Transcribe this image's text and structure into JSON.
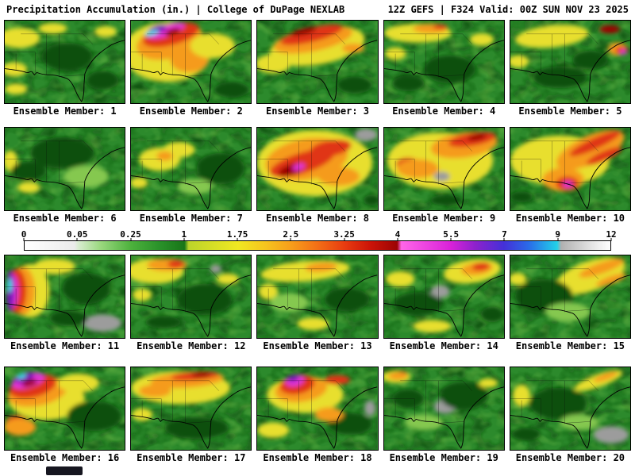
{
  "header": {
    "left": "Precipitation Accumulation (in.) | College of DuPage NEXLAB",
    "right": "12Z GEFS | F324 Valid: 00Z SUN NOV 23 2025"
  },
  "colorbar": {
    "ticks": [
      "0",
      "0.05",
      "0.25",
      "1",
      "1.75",
      "2.5",
      "3.25",
      "4",
      "5.5",
      "7",
      "9",
      "12"
    ],
    "gradient": [
      {
        "p": 0,
        "c": "#ffffff"
      },
      {
        "p": 8.5,
        "c": "#ebebeb"
      },
      {
        "p": 9.2,
        "c": "#d8ecd0"
      },
      {
        "p": 13,
        "c": "#9ad87e"
      },
      {
        "p": 18.2,
        "c": "#4cb13c"
      },
      {
        "p": 23,
        "c": "#2a922a"
      },
      {
        "p": 27.3,
        "c": "#187518"
      },
      {
        "p": 28,
        "c": "#bcd42a"
      },
      {
        "p": 36.4,
        "c": "#f0e822"
      },
      {
        "p": 41,
        "c": "#f6c51e"
      },
      {
        "p": 45.5,
        "c": "#f79e1b"
      },
      {
        "p": 50,
        "c": "#f36f16"
      },
      {
        "p": 54.6,
        "c": "#e83c10"
      },
      {
        "p": 59,
        "c": "#cc1408"
      },
      {
        "p": 63.6,
        "c": "#9c0404"
      },
      {
        "p": 64.3,
        "c": "#ff66e8"
      },
      {
        "p": 72.7,
        "c": "#d922d9"
      },
      {
        "p": 77,
        "c": "#8c22cc"
      },
      {
        "p": 81.8,
        "c": "#4430d8"
      },
      {
        "p": 86,
        "c": "#2a6ae8"
      },
      {
        "p": 90.9,
        "c": "#22d2e8"
      },
      {
        "p": 91.6,
        "c": "#b0b0b0"
      },
      {
        "p": 97,
        "c": "#e6e6e6"
      },
      {
        "p": 100,
        "c": "#ffffff"
      }
    ]
  },
  "palette": {
    "BASE": "#2c8a2c",
    "DG": "#0f4f0f",
    "LG": "#85c84f",
    "Y": "#e8df2e",
    "O": "#f59b1e",
    "R": "#e03414",
    "DR": "#9c0505",
    "M": "#e236d8",
    "P": "#7a18b8",
    "C": "#35dce8",
    "G": "#9c9c9c"
  },
  "members": [
    {
      "label": "Ensemble Member: 1",
      "blobs": [
        [
          "Y",
          18,
          22,
          26,
          13,
          0
        ],
        [
          "Y",
          12,
          62,
          16,
          9,
          0
        ],
        [
          "Y",
          14,
          87,
          14,
          7,
          0
        ],
        [
          "Y",
          126,
          14,
          14,
          7,
          0
        ],
        [
          "DG",
          78,
          46,
          32,
          18,
          0
        ],
        [
          "DG",
          122,
          76,
          20,
          12,
          0
        ],
        [
          "Y",
          60,
          10,
          18,
          7,
          0
        ]
      ]
    },
    {
      "label": "Ensemble Member: 2",
      "blobs": [
        [
          "Y",
          45,
          40,
          55,
          38,
          0
        ],
        [
          "O",
          48,
          26,
          42,
          22,
          -15
        ],
        [
          "R",
          50,
          18,
          36,
          13,
          -15
        ],
        [
          "M",
          44,
          13,
          24,
          7,
          -18
        ],
        [
          "P",
          33,
          11,
          12,
          5,
          -18
        ],
        [
          "C",
          26,
          16,
          9,
          3,
          -18
        ],
        [
          "R",
          76,
          46,
          16,
          12,
          0
        ],
        [
          "O",
          73,
          50,
          24,
          16,
          0
        ],
        [
          "Y",
          102,
          32,
          28,
          16,
          0
        ],
        [
          "DG",
          126,
          88,
          22,
          10,
          0
        ],
        [
          "DR",
          52,
          14,
          10,
          4,
          -18
        ]
      ]
    },
    {
      "label": "Ensemble Member: 3",
      "blobs": [
        [
          "Y",
          75,
          32,
          60,
          24,
          -10
        ],
        [
          "O",
          70,
          24,
          50,
          15,
          -12
        ],
        [
          "R",
          68,
          18,
          40,
          9,
          -14
        ],
        [
          "DR",
          58,
          14,
          16,
          4,
          -14
        ],
        [
          "Y",
          20,
          55,
          22,
          12,
          0
        ],
        [
          "DG",
          122,
          82,
          22,
          11,
          0
        ],
        [
          "O",
          120,
          35,
          14,
          6,
          0
        ]
      ]
    },
    {
      "label": "Ensemble Member: 4",
      "blobs": [
        [
          "Y",
          42,
          16,
          42,
          12,
          0
        ],
        [
          "O",
          58,
          10,
          22,
          6,
          0
        ],
        [
          "R",
          70,
          8,
          9,
          3,
          0
        ],
        [
          "Y",
          14,
          42,
          13,
          8,
          0
        ],
        [
          "Y",
          122,
          24,
          15,
          8,
          0
        ],
        [
          "DG",
          82,
          62,
          32,
          18,
          0
        ],
        [
          "DG",
          30,
          80,
          20,
          10,
          0
        ]
      ]
    },
    {
      "label": "Ensemble Member: 5",
      "blobs": [
        [
          "Y",
          52,
          20,
          46,
          14,
          -6
        ],
        [
          "O",
          134,
          36,
          12,
          8,
          0
        ],
        [
          "R",
          139,
          38,
          8,
          5,
          0
        ],
        [
          "M",
          141,
          40,
          4,
          3,
          0
        ],
        [
          "DR",
          124,
          11,
          13,
          5,
          0
        ],
        [
          "Y",
          10,
          52,
          13,
          8,
          0
        ],
        [
          "DG",
          62,
          72,
          34,
          14,
          0
        ],
        [
          "DG",
          100,
          50,
          22,
          12,
          0
        ]
      ]
    },
    {
      "label": "Ensemble Member: 6",
      "blobs": [
        [
          "DG",
          72,
          32,
          40,
          20,
          0
        ],
        [
          "Y",
          7,
          42,
          9,
          13,
          0
        ],
        [
          "Y",
          30,
          76,
          14,
          7,
          0
        ],
        [
          "LG",
          102,
          62,
          28,
          14,
          0
        ],
        [
          "DG",
          30,
          55,
          22,
          12,
          0
        ]
      ]
    },
    {
      "label": "Ensemble Member: 7",
      "blobs": [
        [
          "Y",
          36,
          40,
          26,
          15,
          0
        ],
        [
          "Y",
          60,
          28,
          20,
          10,
          0
        ],
        [
          "O",
          42,
          36,
          10,
          6,
          0
        ],
        [
          "DG",
          112,
          52,
          30,
          20,
          0
        ],
        [
          "Y",
          10,
          70,
          11,
          7,
          0
        ],
        [
          "LG",
          80,
          75,
          22,
          10,
          0
        ]
      ]
    },
    {
      "label": "Ensemble Member: 8",
      "blobs": [
        [
          "Y",
          72,
          45,
          72,
          42,
          0
        ],
        [
          "O",
          62,
          40,
          52,
          26,
          -10
        ],
        [
          "R",
          56,
          45,
          42,
          13,
          -18
        ],
        [
          "DR",
          42,
          54,
          16,
          7,
          -18
        ],
        [
          "R",
          92,
          26,
          26,
          10,
          -10
        ],
        [
          "M",
          52,
          50,
          8,
          4,
          -18
        ],
        [
          "O",
          102,
          62,
          26,
          12,
          0
        ],
        [
          "G",
          136,
          9,
          14,
          8,
          0
        ],
        [
          "DG",
          143,
          92,
          10,
          7,
          0
        ]
      ]
    },
    {
      "label": "Ensemble Member: 9",
      "blobs": [
        [
          "Y",
          70,
          42,
          66,
          36,
          0
        ],
        [
          "O",
          100,
          22,
          42,
          16,
          -8
        ],
        [
          "R",
          110,
          15,
          30,
          8,
          -10
        ],
        [
          "DR",
          116,
          12,
          12,
          4,
          -10
        ],
        [
          "R",
          30,
          46,
          15,
          8,
          0
        ],
        [
          "O",
          42,
          52,
          26,
          12,
          0
        ],
        [
          "G",
          72,
          62,
          10,
          6,
          0
        ],
        [
          "DG",
          78,
          92,
          20,
          7,
          0
        ]
      ]
    },
    {
      "label": "Ensemble Member: 10",
      "blobs": [
        [
          "Y",
          62,
          42,
          62,
          32,
          0
        ],
        [
          "O",
          100,
          28,
          46,
          18,
          -25
        ],
        [
          "R",
          106,
          20,
          35,
          7,
          -25
        ],
        [
          "R",
          117,
          36,
          24,
          6,
          -25
        ],
        [
          "O",
          66,
          66,
          26,
          15,
          0
        ],
        [
          "R",
          71,
          71,
          14,
          9,
          0
        ],
        [
          "M",
          72,
          72,
          6,
          4,
          0
        ],
        [
          "DG",
          14,
          88,
          14,
          7,
          0
        ]
      ]
    },
    {
      "label": "Ensemble Member: 11",
      "blobs": [
        [
          "Y",
          32,
          45,
          24,
          34,
          0
        ],
        [
          "O",
          22,
          45,
          16,
          31,
          0
        ],
        [
          "R",
          15,
          45,
          12,
          28,
          0
        ],
        [
          "M",
          10,
          45,
          7,
          21,
          0
        ],
        [
          "P",
          7,
          45,
          5,
          26,
          0
        ],
        [
          "C",
          6,
          38,
          3,
          9,
          0
        ],
        [
          "Y",
          62,
          14,
          26,
          10,
          0
        ],
        [
          "DG",
          102,
          42,
          30,
          20,
          0
        ],
        [
          "G",
          122,
          86,
          24,
          11,
          0
        ],
        [
          "DG",
          80,
          80,
          24,
          10,
          0
        ]
      ]
    },
    {
      "label": "Ensemble Member: 12",
      "blobs": [
        [
          "Y",
          30,
          20,
          36,
          16,
          0
        ],
        [
          "O",
          45,
          12,
          25,
          8,
          0
        ],
        [
          "R",
          56,
          11,
          10,
          5,
          0
        ],
        [
          "Y",
          14,
          50,
          12,
          8,
          0
        ],
        [
          "Y",
          121,
          30,
          14,
          7,
          0
        ],
        [
          "DG",
          92,
          56,
          34,
          20,
          0
        ],
        [
          "G",
          106,
          17,
          7,
          5,
          0
        ],
        [
          "DG",
          40,
          85,
          22,
          8,
          0
        ]
      ]
    },
    {
      "label": "Ensemble Member: 13",
      "blobs": [
        [
          "Y",
          60,
          20,
          56,
          13,
          -5
        ],
        [
          "O",
          80,
          15,
          20,
          6,
          -5
        ],
        [
          "Y",
          70,
          87,
          20,
          8,
          0
        ],
        [
          "DG",
          112,
          56,
          28,
          15,
          0
        ],
        [
          "Y",
          14,
          46,
          12,
          10,
          0
        ],
        [
          "LG",
          40,
          60,
          24,
          12,
          0
        ]
      ]
    },
    {
      "label": "Ensemble Member: 14",
      "blobs": [
        [
          "Y",
          110,
          20,
          36,
          15,
          -8
        ],
        [
          "O",
          116,
          17,
          20,
          8,
          -8
        ],
        [
          "R",
          121,
          14,
          11,
          5,
          -8
        ],
        [
          "G",
          70,
          46,
          12,
          8,
          0
        ],
        [
          "Y",
          20,
          30,
          18,
          10,
          0
        ],
        [
          "Y",
          60,
          90,
          24,
          8,
          0
        ],
        [
          "DG",
          42,
          62,
          30,
          15,
          0
        ],
        [
          "DG",
          135,
          75,
          14,
          10,
          0
        ]
      ]
    },
    {
      "label": "Ensemble Member: 15",
      "blobs": [
        [
          "Y",
          100,
          26,
          46,
          19,
          -20
        ],
        [
          "O",
          114,
          16,
          30,
          7,
          -20
        ],
        [
          "O",
          126,
          31,
          20,
          5,
          -20
        ],
        [
          "DG",
          42,
          52,
          36,
          22,
          0
        ],
        [
          "Y",
          9,
          30,
          11,
          8,
          0
        ],
        [
          "LG",
          72,
          72,
          28,
          12,
          0
        ]
      ]
    },
    {
      "label": "Ensemble Member: 16",
      "blobs": [
        [
          "Y",
          52,
          40,
          48,
          27,
          0
        ],
        [
          "O",
          41,
          31,
          38,
          18,
          -12
        ],
        [
          "R",
          35,
          24,
          30,
          14,
          -14
        ],
        [
          "M",
          29,
          17,
          21,
          9,
          -16
        ],
        [
          "P",
          24,
          13,
          13,
          6,
          -16
        ],
        [
          "C",
          21,
          11,
          6,
          3,
          -16
        ],
        [
          "R",
          15,
          71,
          14,
          10,
          0
        ],
        [
          "O",
          19,
          76,
          20,
          11,
          0
        ],
        [
          "Y",
          92,
          20,
          26,
          12,
          0
        ],
        [
          "DG",
          112,
          62,
          34,
          19,
          0
        ],
        [
          "DR",
          31,
          20,
          10,
          4,
          -16
        ]
      ]
    },
    {
      "label": "Ensemble Member: 17",
      "blobs": [
        [
          "Y",
          62,
          26,
          62,
          21,
          0
        ],
        [
          "O",
          70,
          16,
          46,
          10,
          -4
        ],
        [
          "R",
          80,
          11,
          30,
          5,
          -4
        ],
        [
          "DR",
          88,
          10,
          12,
          3,
          -4
        ],
        [
          "O",
          30,
          30,
          20,
          8,
          0
        ],
        [
          "DG",
          82,
          77,
          40,
          14,
          0
        ],
        [
          "Y",
          14,
          60,
          13,
          8,
          0
        ]
      ]
    },
    {
      "label": "Ensemble Member: 18",
      "blobs": [
        [
          "Y",
          60,
          35,
          48,
          23,
          0
        ],
        [
          "O",
          55,
          28,
          33,
          16,
          -8
        ],
        [
          "R",
          50,
          22,
          22,
          12,
          -10
        ],
        [
          "M",
          47,
          17,
          12,
          7,
          -12
        ],
        [
          "P",
          45,
          14,
          7,
          4,
          -12
        ],
        [
          "R",
          100,
          16,
          16,
          6,
          0
        ],
        [
          "Y",
          20,
          80,
          20,
          10,
          0
        ],
        [
          "DG",
          116,
          72,
          28,
          14,
          0
        ],
        [
          "G",
          141,
          52,
          7,
          10,
          0
        ],
        [
          "O",
          90,
          60,
          18,
          9,
          0
        ]
      ]
    },
    {
      "label": "Ensemble Member: 19",
      "blobs": [
        [
          "Y",
          15,
          12,
          18,
          8,
          0
        ],
        [
          "R",
          21,
          9,
          8,
          4,
          0
        ],
        [
          "O",
          17,
          11,
          12,
          5,
          0
        ],
        [
          "G",
          76,
          50,
          14,
          9,
          0
        ],
        [
          "DG",
          100,
          36,
          30,
          18,
          0
        ],
        [
          "Y",
          130,
          20,
          12,
          6,
          0
        ],
        [
          "LG",
          50,
          70,
          24,
          10,
          0
        ],
        [
          "DG",
          30,
          40,
          20,
          12,
          0
        ]
      ]
    },
    {
      "label": "Ensemble Member: 20",
      "blobs": [
        [
          "Y",
          110,
          17,
          32,
          8,
          -20
        ],
        [
          "O",
          119,
          12,
          16,
          4,
          -20
        ],
        [
          "G",
          126,
          86,
          22,
          11,
          0
        ],
        [
          "DG",
          60,
          46,
          36,
          20,
          0
        ],
        [
          "Y",
          14,
          36,
          11,
          14,
          0
        ],
        [
          "LG",
          86,
          70,
          24,
          10,
          0
        ],
        [
          "DG",
          20,
          85,
          18,
          8,
          0
        ]
      ]
    }
  ]
}
